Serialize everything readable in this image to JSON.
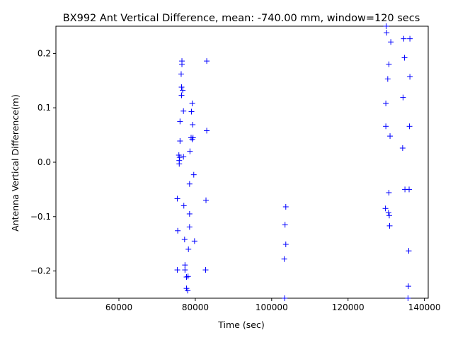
{
  "chart_data": {
    "type": "scatter",
    "title": "BX992 Ant Vertical Difference, mean: -740.00 mm, window=120 secs",
    "xlabel": "Time (sec)",
    "ylabel": "Antenna Vertical Difference(m)",
    "xlim": [
      43500,
      141000
    ],
    "ylim": [
      -0.25,
      0.25
    ],
    "xticks": [
      60000,
      80000,
      100000,
      120000,
      140000
    ],
    "xtick_labels": [
      "60000",
      "80000",
      "100000",
      "120000",
      "140000"
    ],
    "yticks": [
      -0.2,
      -0.1,
      0.0,
      0.1,
      0.2
    ],
    "ytick_labels": [
      "−0.2",
      "−0.1",
      "0.0",
      "0.1",
      "0.2"
    ],
    "grid": false,
    "marker": "+",
    "color": "#0000ff",
    "series": [
      {
        "points": [
          [
            76500,
            0.186
          ],
          [
            76500,
            0.18
          ],
          [
            76300,
            0.162
          ],
          [
            76400,
            0.138
          ],
          [
            76700,
            0.132
          ],
          [
            76400,
            0.123
          ],
          [
            79200,
            0.108
          ],
          [
            76900,
            0.094
          ],
          [
            79000,
            0.093
          ],
          [
            76000,
            0.075
          ],
          [
            79300,
            0.069
          ],
          [
            78900,
            0.045
          ],
          [
            79400,
            0.045
          ],
          [
            79200,
            0.042
          ],
          [
            76000,
            0.039
          ],
          [
            78600,
            0.02
          ],
          [
            75700,
            0.013
          ],
          [
            76900,
            0.01
          ],
          [
            75900,
            0.009
          ],
          [
            75800,
            0.003
          ],
          [
            75800,
            -0.003
          ],
          [
            79600,
            -0.023
          ],
          [
            78500,
            -0.04
          ],
          [
            75300,
            -0.067
          ],
          [
            77000,
            -0.08
          ],
          [
            78500,
            -0.095
          ],
          [
            78500,
            -0.119
          ],
          [
            75400,
            -0.126
          ],
          [
            77200,
            -0.142
          ],
          [
            79800,
            -0.145
          ],
          [
            78200,
            -0.16
          ],
          [
            77300,
            -0.189
          ],
          [
            77300,
            -0.198
          ],
          [
            75300,
            -0.198
          ],
          [
            78100,
            -0.21
          ],
          [
            77700,
            -0.211
          ],
          [
            77700,
            -0.232
          ],
          [
            78000,
            -0.236
          ],
          [
            83000,
            0.186
          ],
          [
            83000,
            0.058
          ],
          [
            82800,
            -0.07
          ],
          [
            82700,
            -0.198
          ],
          [
            103700,
            -0.082
          ],
          [
            103500,
            -0.115
          ],
          [
            103700,
            -0.151
          ],
          [
            103300,
            -0.178
          ],
          [
            103400,
            -0.25
          ],
          [
            130000,
            0.25
          ],
          [
            130100,
            0.238
          ],
          [
            131200,
            0.221
          ],
          [
            134600,
            0.227
          ],
          [
            136200,
            0.227
          ],
          [
            134800,
            0.192
          ],
          [
            130700,
            0.18
          ],
          [
            130400,
            0.153
          ],
          [
            136200,
            0.157
          ],
          [
            134400,
            0.119
          ],
          [
            129900,
            0.108
          ],
          [
            129900,
            0.066
          ],
          [
            136100,
            0.066
          ],
          [
            131000,
            0.048
          ],
          [
            134300,
            0.026
          ],
          [
            130700,
            -0.056
          ],
          [
            134900,
            -0.05
          ],
          [
            136000,
            -0.05
          ],
          [
            129800,
            -0.085
          ],
          [
            130600,
            -0.093
          ],
          [
            130800,
            -0.098
          ],
          [
            130900,
            -0.117
          ],
          [
            135900,
            -0.163
          ],
          [
            135800,
            -0.228
          ],
          [
            135700,
            -0.25
          ]
        ]
      }
    ]
  }
}
